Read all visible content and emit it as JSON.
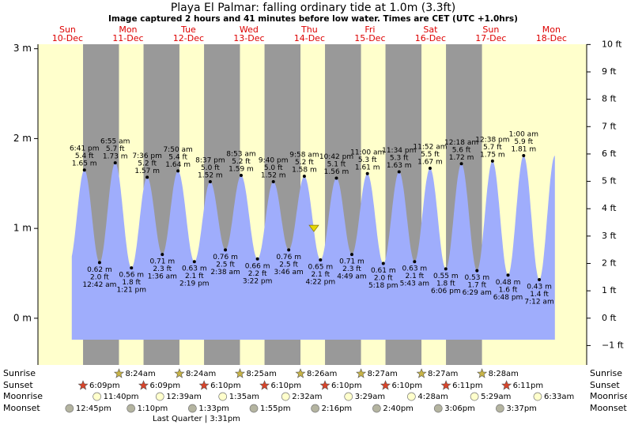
{
  "chart_data": {
    "type": "tide",
    "title": "Playa El Palmar: falling  ordinary tide at 1.0m (3.3ft)",
    "subtitle": "Image captured 2 hours and 41 minutes before low water. Times are CET (UTC +1.0hrs)",
    "days": [
      {
        "weekday": "Sun",
        "date": "10-Dec"
      },
      {
        "weekday": "Mon",
        "date": "11-Dec"
      },
      {
        "weekday": "Tue",
        "date": "12-Dec"
      },
      {
        "weekday": "Wed",
        "date": "13-Dec"
      },
      {
        "weekday": "Thu",
        "date": "14-Dec"
      },
      {
        "weekday": "Fri",
        "date": "15-Dec"
      },
      {
        "weekday": "Sat",
        "date": "16-Dec"
      },
      {
        "weekday": "Sun",
        "date": "17-Dec"
      },
      {
        "weekday": "Mon",
        "date": "18-Dec"
      }
    ],
    "ylim": [
      -0.52,
      3.05
    ],
    "yticks": [
      {
        "value": 3,
        "label": "3 m"
      },
      {
        "value": 2,
        "label": "2 m"
      },
      {
        "value": 1,
        "label": "1 m"
      },
      {
        "value": 0,
        "label": "0 m"
      }
    ],
    "y2lim": [
      -1.71,
      10.01
    ],
    "y2ticks": [
      {
        "value": 10,
        "label": "10 ft"
      },
      {
        "value": 9,
        "label": "9 ft"
      },
      {
        "value": 8,
        "label": "8 ft"
      },
      {
        "value": 7,
        "label": "7 ft"
      },
      {
        "value": 6,
        "label": "6 ft"
      },
      {
        "value": 5,
        "label": "5 ft"
      },
      {
        "value": 4,
        "label": "4 ft"
      },
      {
        "value": 3,
        "label": "3 ft"
      },
      {
        "value": 2,
        "label": "2 ft"
      },
      {
        "value": 1,
        "label": "1 ft"
      },
      {
        "value": 0,
        "label": "0 ft"
      },
      {
        "value": -1,
        "label": "−1 ft"
      }
    ],
    "fill_color": "#9fadfc",
    "current_height": 1.0,
    "tides": {
      "times": [
        "6:41 pm",
        "12:42 am",
        "6:55 am",
        "1:21 pm",
        "7:36 pm",
        "1:36 am",
        "7:50 am",
        "2:19 pm",
        "8:37 pm",
        "2:38 am",
        "8:53 am",
        "3:22 pm",
        "9:40 pm",
        "3:46 am",
        "9:58 am",
        "4:22 pm",
        "10:42 pm",
        "4:49 am",
        "11:00 am",
        "5:18 pm",
        "11:34 pm",
        "5:43 am",
        "11:52 am",
        "6:06 pm",
        "12:18 am",
        "6:29 am",
        "12:38 pm",
        "6:48 pm",
        "1:00 am",
        "7:12 am"
      ],
      "values": [
        1.65,
        0.62,
        1.73,
        0.56,
        1.57,
        0.71,
        1.64,
        0.63,
        1.52,
        0.76,
        1.59,
        0.66,
        1.52,
        0.76,
        1.58,
        0.65,
        1.56,
        0.71,
        1.61,
        0.61,
        1.63,
        0.63,
        1.67,
        0.55,
        1.72,
        0.53,
        1.75,
        0.48,
        1.81,
        0.43
      ],
      "value_labels": [
        "1.65 m",
        "0.62 m",
        "1.73 m",
        "0.56 m",
        "1.57 m",
        "0.71 m",
        "1.64 m",
        "0.63 m",
        "1.52 m",
        "0.76 m",
        "1.59 m",
        "0.66 m",
        "1.52 m",
        "0.76 m",
        "1.58 m",
        "0.65 m",
        "1.56 m",
        "0.71 m",
        "1.61 m",
        "0.61 m",
        "1.63 m",
        "0.63 m",
        "1.67 m",
        "0.55 m",
        "1.72 m",
        "0.53 m",
        "1.75 m",
        "0.48 m",
        "1.81 m",
        "0.43 m"
      ],
      "ft_labels": [
        "5.4 ft",
        "2.0 ft",
        "5.7 ft",
        "1.8 ft",
        "5.2 ft",
        "2.3 ft",
        "5.4 ft",
        "2.1 ft",
        "5.0 ft",
        "2.5 ft",
        "5.2 ft",
        "2.2 ft",
        "5.0 ft",
        "2.5 ft",
        "5.2 ft",
        "2.1 ft",
        "5.1 ft",
        "2.3 ft",
        "5.3 ft",
        "2.0 ft",
        "5.3 ft",
        "2.1 ft",
        "5.5 ft",
        "1.8 ft",
        "5.6 ft",
        "1.7 ft",
        "5.7 ft",
        "1.6 ft",
        "5.9 ft",
        "1.4 ft"
      ]
    },
    "events": {
      "sunrise": {
        "label": "Sunrise",
        "times": [
          "8:24am",
          "8:24am",
          "8:25am",
          "8:26am",
          "8:27am",
          "8:27am",
          "8:28am"
        ]
      },
      "sunset": {
        "label": "Sunset",
        "times": [
          "6:09pm",
          "6:09pm",
          "6:10pm",
          "6:10pm",
          "6:10pm",
          "6:10pm",
          "6:11pm",
          "6:11pm"
        ]
      },
      "moonrise": {
        "label": "Moonrise",
        "times": [
          "11:40pm",
          "12:39am",
          "1:35am",
          "2:32am",
          "3:29am",
          "4:28am",
          "5:29am",
          "6:33am"
        ]
      },
      "moonset": {
        "label": "Moonset",
        "times": [
          "12:45pm",
          "1:10pm",
          "1:33pm",
          "1:55pm",
          "2:16pm",
          "2:40pm",
          "3:06pm",
          "3:37pm"
        ]
      }
    },
    "moon_phase": "Last Quarter | 3:31pm"
  }
}
